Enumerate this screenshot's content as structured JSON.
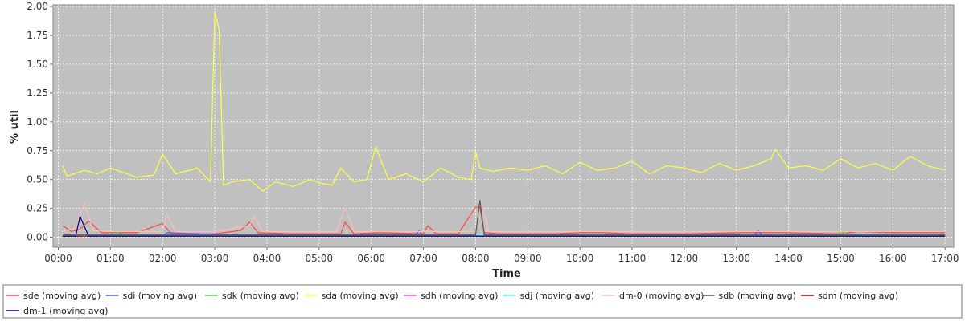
{
  "chart_data": {
    "type": "line",
    "xlabel": "Time",
    "ylabel": "% util",
    "xlim": [
      "00:00",
      "17:00"
    ],
    "ylim": [
      -0.1,
      2.0
    ],
    "x_ticks": [
      "00:00",
      "01:00",
      "02:00",
      "03:00",
      "04:00",
      "05:00",
      "06:00",
      "07:00",
      "08:00",
      "09:00",
      "10:00",
      "11:00",
      "12:00",
      "13:00",
      "14:00",
      "15:00",
      "16:00",
      "17:00"
    ],
    "y_ticks": [
      "0.00",
      "0.25",
      "0.50",
      "0.75",
      "1.00",
      "1.25",
      "1.50",
      "1.75",
      "2.00"
    ],
    "grid": true,
    "legend_placement": "bottom",
    "plot_background": "#c0c0c0",
    "series": [
      {
        "name": "sde (moving avg)",
        "color": "#ff4444",
        "x": [
          "00:05",
          "00:15",
          "00:25",
          "00:35",
          "00:50",
          "01:30",
          "02:00",
          "02:10",
          "03:00",
          "03:30",
          "03:40",
          "03:50",
          "04:30",
          "05:25",
          "05:30",
          "05:40",
          "06:10",
          "07:00",
          "07:05",
          "07:15",
          "07:40",
          "08:00",
          "08:05",
          "08:10",
          "08:30",
          "09:30",
          "10:00",
          "10:30",
          "11:00",
          "12:00",
          "13:00",
          "13:30",
          "14:00",
          "15:00",
          "15:20",
          "16:00",
          "17:00"
        ],
        "values": [
          0.1,
          0.05,
          0.07,
          0.14,
          0.04,
          0.04,
          0.12,
          0.03,
          0.03,
          0.06,
          0.13,
          0.04,
          0.03,
          0.03,
          0.13,
          0.03,
          0.04,
          0.03,
          0.1,
          0.03,
          0.03,
          0.26,
          0.26,
          0.04,
          0.03,
          0.03,
          0.04,
          0.04,
          0.03,
          0.03,
          0.04,
          0.04,
          0.04,
          0.03,
          0.05,
          0.04,
          0.04
        ]
      },
      {
        "name": "sdi (moving avg)",
        "color": "#4466ff",
        "x": [
          "00:05",
          "02:00",
          "02:05",
          "04:00",
          "06:50",
          "06:55",
          "07:00",
          "13:20",
          "13:25",
          "13:30",
          "17:00"
        ],
        "values": [
          0.01,
          0.01,
          0.04,
          0.01,
          0.01,
          0.06,
          0.01,
          0.01,
          0.06,
          0.01,
          0.01
        ]
      },
      {
        "name": "sdk (moving avg)",
        "color": "#44dd44",
        "x": [
          "00:05",
          "01:00",
          "01:05",
          "01:15",
          "14:55",
          "15:00",
          "15:10",
          "17:00"
        ],
        "values": [
          0.01,
          0.02,
          0.05,
          0.02,
          0.02,
          0.05,
          0.02,
          0.02
        ]
      },
      {
        "name": "sda (moving avg)",
        "color": "#ffff44",
        "x": [
          "00:05",
          "00:10",
          "00:30",
          "00:45",
          "01:00",
          "01:30",
          "01:50",
          "02:00",
          "02:15",
          "02:40",
          "02:55",
          "03:00",
          "03:05",
          "03:10",
          "03:20",
          "03:40",
          "03:55",
          "04:10",
          "04:30",
          "04:50",
          "05:00",
          "05:15",
          "05:25",
          "05:40",
          "05:55",
          "06:05",
          "06:20",
          "06:40",
          "07:00",
          "07:20",
          "07:40",
          "07:55",
          "08:00",
          "08:05",
          "08:20",
          "08:40",
          "09:00",
          "09:20",
          "09:40",
          "10:00",
          "10:20",
          "10:40",
          "11:00",
          "11:20",
          "11:40",
          "12:00",
          "12:20",
          "12:40",
          "13:00",
          "13:20",
          "13:40",
          "13:45",
          "14:00",
          "14:20",
          "14:40",
          "15:00",
          "15:20",
          "15:40",
          "16:00",
          "16:20",
          "16:40",
          "17:00"
        ],
        "values": [
          0.62,
          0.53,
          0.58,
          0.55,
          0.6,
          0.52,
          0.54,
          0.72,
          0.55,
          0.6,
          0.48,
          1.95,
          1.8,
          0.45,
          0.48,
          0.5,
          0.4,
          0.48,
          0.44,
          0.5,
          0.47,
          0.45,
          0.6,
          0.48,
          0.5,
          0.78,
          0.5,
          0.55,
          0.48,
          0.6,
          0.52,
          0.5,
          0.74,
          0.6,
          0.57,
          0.6,
          0.58,
          0.62,
          0.55,
          0.65,
          0.58,
          0.6,
          0.66,
          0.55,
          0.62,
          0.6,
          0.56,
          0.64,
          0.58,
          0.62,
          0.68,
          0.76,
          0.6,
          0.62,
          0.58,
          0.68,
          0.6,
          0.64,
          0.58,
          0.7,
          0.62,
          0.58
        ]
      },
      {
        "name": "sdh (moving avg)",
        "color": "#ff44ff",
        "x": [
          "00:05",
          "17:00"
        ],
        "values": [
          0.02,
          0.02
        ]
      },
      {
        "name": "sdj (moving avg)",
        "color": "#44ffff",
        "x": [
          "00:05",
          "17:00"
        ],
        "values": [
          0.02,
          0.02
        ]
      },
      {
        "name": "dm-0 (moving avg)",
        "color": "#ffbbbb",
        "x": [
          "00:05",
          "00:20",
          "00:30",
          "00:40",
          "01:00",
          "02:00",
          "02:05",
          "02:15",
          "03:00",
          "03:40",
          "03:45",
          "03:55",
          "05:20",
          "05:30",
          "05:40",
          "07:00",
          "08:00",
          "08:05",
          "08:15",
          "17:00"
        ],
        "values": [
          0.05,
          0.08,
          0.3,
          0.06,
          0.05,
          0.05,
          0.2,
          0.05,
          0.05,
          0.1,
          0.18,
          0.05,
          0.05,
          0.25,
          0.05,
          0.05,
          0.05,
          0.32,
          0.05,
          0.05
        ]
      },
      {
        "name": "sdb (moving avg)",
        "color": "#555555",
        "x": [
          "00:05",
          "08:00",
          "08:05",
          "08:10",
          "17:00"
        ],
        "values": [
          0.02,
          0.02,
          0.32,
          0.02,
          0.02
        ]
      },
      {
        "name": "sdm (moving avg)",
        "color": "#aa0000",
        "x": [
          "00:05",
          "17:00"
        ],
        "values": [
          0.01,
          0.01
        ]
      },
      {
        "name": "dm-1 (moving avg)",
        "color": "#000088",
        "x": [
          "00:05",
          "00:20",
          "00:25",
          "00:35",
          "17:00"
        ],
        "values": [
          0.01,
          0.01,
          0.18,
          0.01,
          0.01
        ]
      }
    ]
  }
}
